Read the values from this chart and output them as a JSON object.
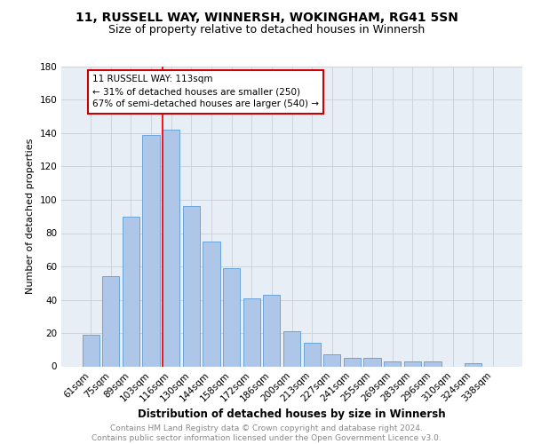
{
  "title1": "11, RUSSELL WAY, WINNERSH, WOKINGHAM, RG41 5SN",
  "title2": "Size of property relative to detached houses in Winnersh",
  "xlabel": "Distribution of detached houses by size in Winnersh",
  "ylabel": "Number of detached properties",
  "categories": [
    "61sqm",
    "75sqm",
    "89sqm",
    "103sqm",
    "116sqm",
    "130sqm",
    "144sqm",
    "158sqm",
    "172sqm",
    "186sqm",
    "200sqm",
    "213sqm",
    "227sqm",
    "241sqm",
    "255sqm",
    "269sqm",
    "283sqm",
    "296sqm",
    "310sqm",
    "324sqm",
    "338sqm"
  ],
  "values": [
    19,
    54,
    90,
    139,
    142,
    96,
    75,
    59,
    41,
    43,
    21,
    14,
    7,
    5,
    5,
    3,
    3,
    3,
    0,
    2,
    0
  ],
  "bar_color": "#aec6e8",
  "bar_edge_color": "#5b9bd5",
  "annotation_text": "11 RUSSELL WAY: 113sqm\n← 31% of detached houses are smaller (250)\n67% of semi-detached houses are larger (540) →",
  "annotation_box_color": "#ffffff",
  "annotation_box_edge_color": "#cc0000",
  "ylim": [
    0,
    180
  ],
  "yticks": [
    0,
    20,
    40,
    60,
    80,
    100,
    120,
    140,
    160,
    180
  ],
  "grid_color": "#c8d0dc",
  "bg_color": "#e8eef5",
  "footer_text": "Contains HM Land Registry data © Crown copyright and database right 2024.\nContains public sector information licensed under the Open Government Licence v3.0.",
  "title1_fontsize": 10,
  "title2_fontsize": 9,
  "xlabel_fontsize": 8.5,
  "ylabel_fontsize": 8,
  "tick_fontsize": 7.5,
  "annotation_fontsize": 7.5,
  "footer_fontsize": 6.5
}
